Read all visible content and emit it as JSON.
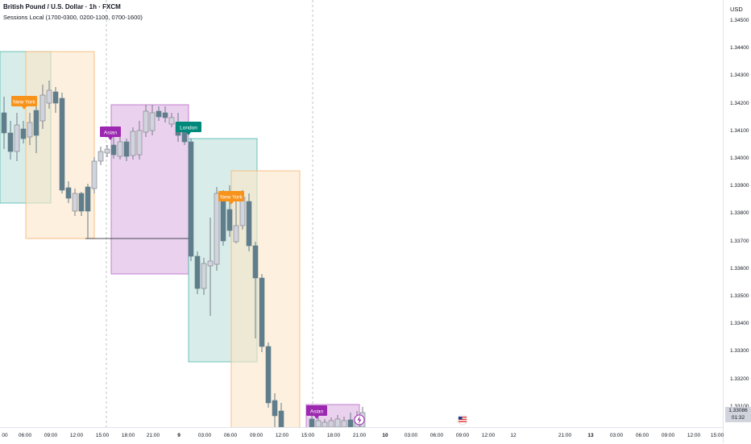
{
  "header": {
    "symbol_title": "British Pound / U.S. Dollar · 1h · FXCM",
    "indicator_label": "Sessions Local (1700-0300, 0200-1100, 0700-1600)"
  },
  "price_axis": {
    "currency": "USD",
    "ticks": [
      "1.34500",
      "1.34400",
      "1.34300",
      "1.34200",
      "1.34100",
      "1.34000",
      "1.33900",
      "1.33800",
      "1.33700",
      "1.33600",
      "1.33500",
      "1.33400",
      "1.33300",
      "1.33200",
      "1.33100"
    ],
    "current_price": "1.33086",
    "countdown": "01:32"
  },
  "time_axis": {
    "ticks": [
      "00",
      "06:00",
      "09:00",
      "12:00",
      "15:00",
      "18:00",
      "21:00",
      "9",
      "03:00",
      "06:00",
      "09:00",
      "12:00",
      "15:00",
      "18:00",
      "21:00",
      "10",
      "03:00",
      "06:00",
      "09:00",
      "12:00",
      "12",
      "21:00",
      "13",
      "03:00",
      "06:00",
      "09:00",
      "12:00",
      "15:00"
    ]
  },
  "sessions": [
    {
      "name": "New York",
      "color": "#f7931a"
    },
    {
      "name": "Asian",
      "color": "#9c27b0"
    },
    {
      "name": "London",
      "color": "#00897b"
    },
    {
      "name": "New York",
      "color": "#f7931a"
    },
    {
      "name": "Asian",
      "color": "#9c27b0"
    }
  ],
  "colors": {
    "bear_candle": "#607d8b",
    "bull_candle": "#d1d4dc",
    "asian_box": "#e1bee7",
    "london_box": "#c8e6df",
    "newyork_box": "#fde6c8"
  },
  "icons": [
    "us-flag-icon",
    "lightning-icon"
  ]
}
